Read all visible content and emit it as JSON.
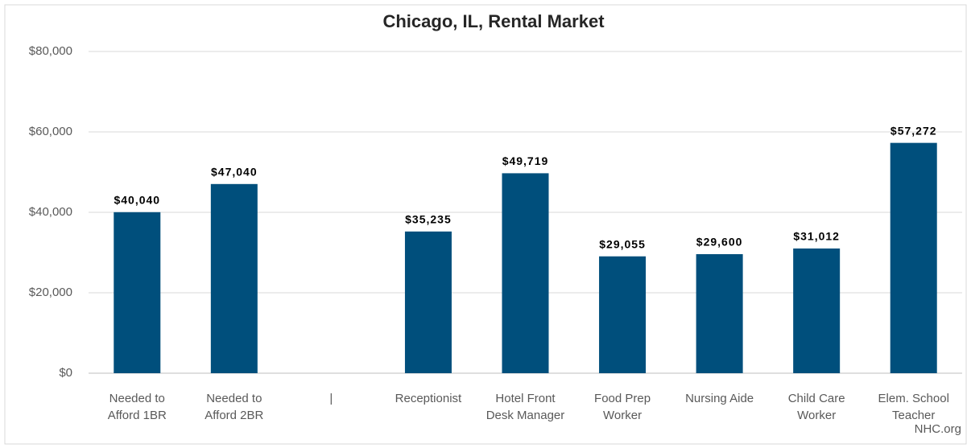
{
  "chart_data": {
    "type": "bar",
    "title": "Chicago, IL, Rental Market",
    "categories": [
      [
        "Needed to",
        "Afford 1BR"
      ],
      [
        "Needed to",
        "Afford 2BR"
      ],
      [
        "|"
      ],
      [
        "Receptionist"
      ],
      [
        "Hotel Front",
        "Desk Manager"
      ],
      [
        "Food Prep",
        "Worker"
      ],
      [
        "Nursing Aide"
      ],
      [
        "Child Care",
        "Worker"
      ],
      [
        "Elem. School",
        "Teacher"
      ]
    ],
    "values": [
      40040,
      47040,
      null,
      35235,
      49719,
      29055,
      29600,
      31012,
      57272
    ],
    "value_labels": [
      "$40,040",
      "$47,040",
      null,
      "$35,235",
      "$49,719",
      "$29,055",
      "$29,600",
      "$31,012",
      "$57,272"
    ],
    "color": "#004f7c",
    "ylim": [
      0,
      80000
    ],
    "yticks": [
      {
        "value": 0,
        "label": "$0"
      },
      {
        "value": 20000,
        "label": "$20,000"
      },
      {
        "value": 40000,
        "label": "$40,000"
      },
      {
        "value": 60000,
        "label": "$60,000"
      },
      {
        "value": 80000,
        "label": "$80,000"
      }
    ],
    "grid": true,
    "annotation": "NHC.org"
  }
}
